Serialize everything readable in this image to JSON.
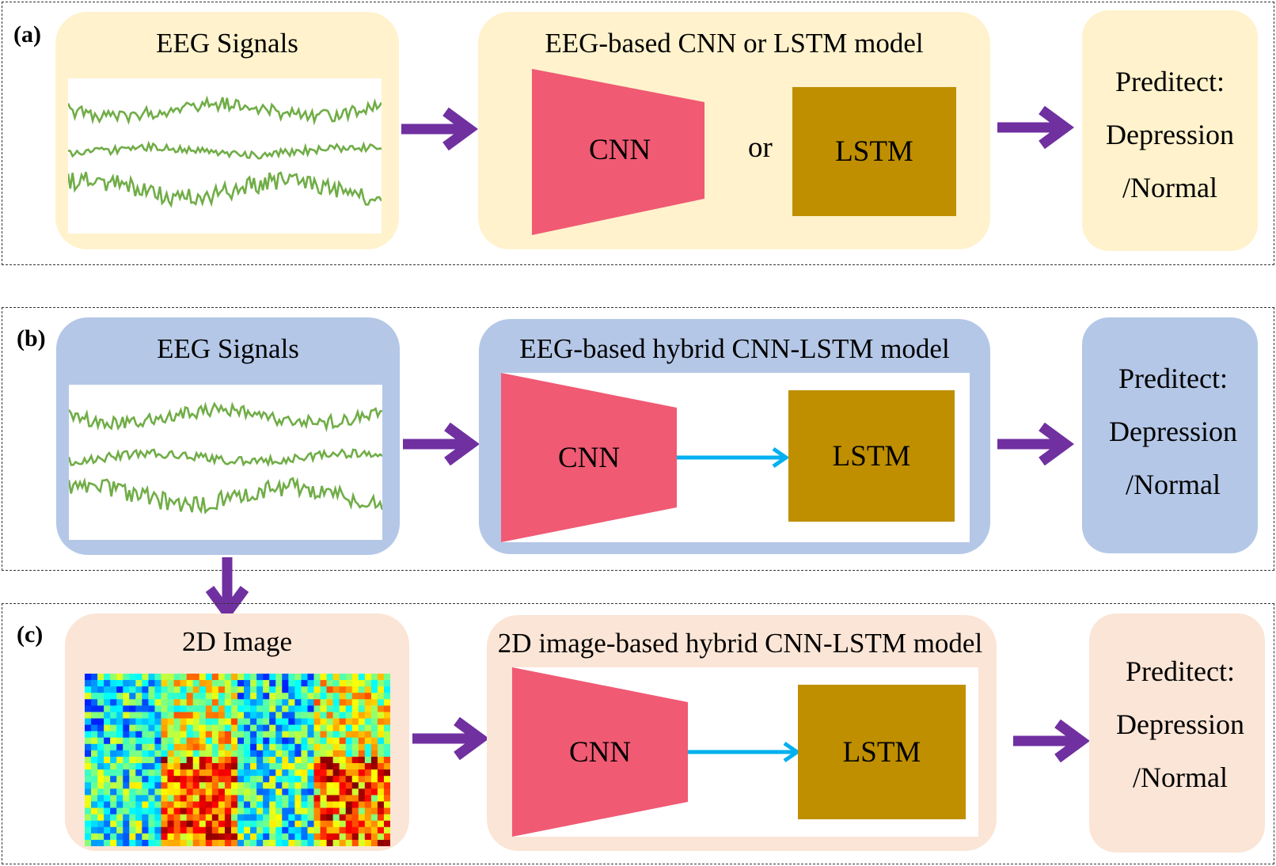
{
  "colors": {
    "panel_a_fill": "#fff2cc",
    "panel_b_fill": "#b4c7e7",
    "panel_c_fill": "#fbe5d6",
    "cnn_fill": "#f05a73",
    "lstm_fill": "#bf8f00",
    "arrow_purple": "#7030a0",
    "arrow_blue": "#00b0f0",
    "signal_green": "#70ad47"
  },
  "panels": {
    "a": {
      "label": "(a)",
      "input_title": "EEG Signals",
      "model_title": "EEG-based CNN or LSTM model",
      "cnn_label": "CNN",
      "or_label": "or",
      "lstm_label": "LSTM",
      "pred_line1": "Preditect:",
      "pred_line2": "Depression",
      "pred_line3": "/Normal"
    },
    "b": {
      "label": "(b)",
      "input_title": "EEG Signals",
      "model_title": "EEG-based hybrid CNN-LSTM model",
      "cnn_label": "CNN",
      "lstm_label": "LSTM",
      "pred_line1": "Preditect:",
      "pred_line2": "Depression",
      "pred_line3": "/Normal"
    },
    "c": {
      "label": "(c)",
      "input_title": "2D Image",
      "model_title": "2D image-based hybrid CNN-LSTM model",
      "cnn_label": "CNN",
      "lstm_label": "LSTM",
      "pred_line1": "Preditect:",
      "pred_line2": "Depression",
      "pred_line3": "/Normal"
    }
  },
  "icons": {
    "flow_arrow": "right-arrow-icon",
    "down_arrow": "down-arrow-icon",
    "eeg_waveform": "eeg-waveform-icon",
    "heatmap": "heatmap-image-icon"
  }
}
